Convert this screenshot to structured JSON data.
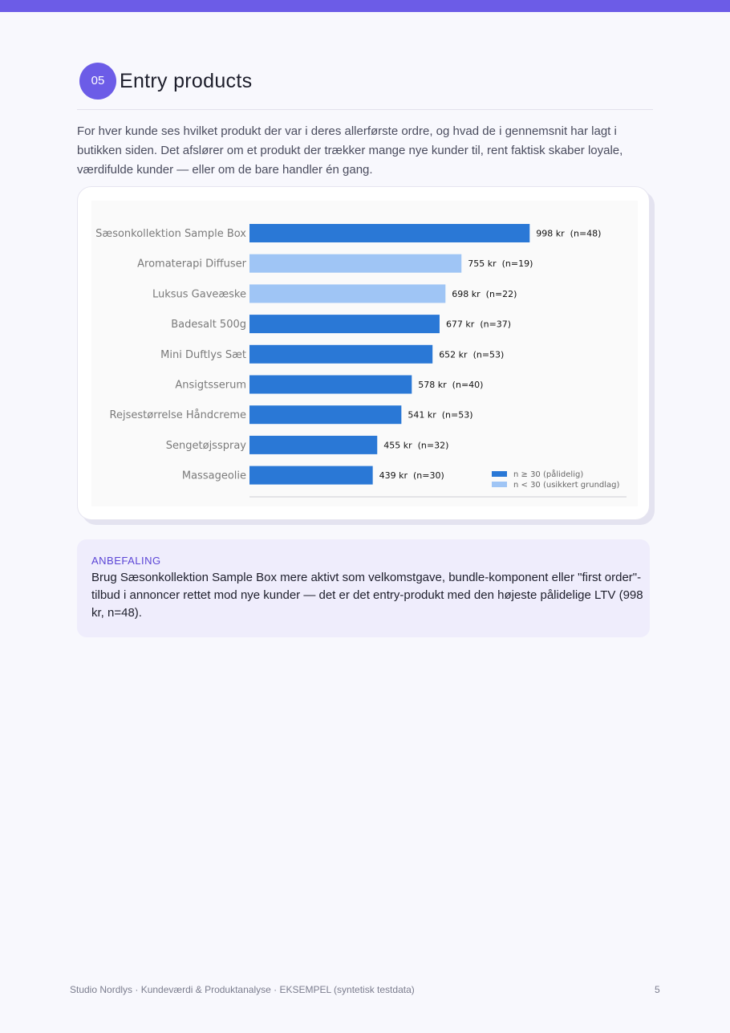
{
  "section": {
    "number": "05",
    "title": "Entry products"
  },
  "intro": "For hver kunde ses hvilket produkt der var i deres allerførste ordre, og hvad de i gennemsnit har lagt i butikken siden. Det afslører om et produkt der trækker mange nye kunder til, rent faktisk skaber loyale, værdifulde kunder — eller om de bare handler én gang.",
  "chart_data": {
    "type": "bar",
    "orientation": "horizontal",
    "categories": [
      "Sæsonkollektion Sample Box",
      "Aromaterapi Diffuser",
      "Luksus Gaveæske",
      "Badesalt 500g",
      "Mini Duftlys Sæt",
      "Ansigtsserum",
      "Rejsestørrelse Håndcreme",
      "Sengetøjsspray",
      "Massageolie"
    ],
    "values": [
      998,
      755,
      698,
      677,
      652,
      578,
      541,
      455,
      439
    ],
    "n": [
      48,
      19,
      22,
      37,
      53,
      40,
      53,
      32,
      30
    ],
    "data_labels": [
      "998 kr  (n=48)",
      "755 kr  (n=19)",
      "698 kr  (n=22)",
      "677 kr  (n=37)",
      "652 kr  (n=53)",
      "578 kr  (n=40)",
      "541 kr  (n=53)",
      "455 kr  (n=32)",
      "439 kr  (n=30)"
    ],
    "xlim": [
      0,
      1000
    ],
    "grid": false,
    "legend_position": "bottom-right",
    "legend": [
      {
        "name": "n ≥ 30 (pålidelig)",
        "color": "#2a78d6"
      },
      {
        "name": "n < 30 (usikkert grundlag)",
        "color": "#9fc5f5"
      }
    ],
    "colors": {
      "reliable": "#2a78d6",
      "unreliable": "#9fc5f5"
    },
    "reliable_threshold": 30
  },
  "recommendation": {
    "label": "ANBEFALING",
    "text": "Brug Sæsonkollektion Sample Box mere aktivt som velkomstgave, bundle-komponent eller \"first order\"-tilbud i annoncer rettet mod nye kunder — det er det entry-produkt med den højeste pålidelige LTV (998 kr, n=48)."
  },
  "footer": {
    "left": "Studio Nordlys · Kundeværdi & Produktanalyse · EKSEMPEL (syntetisk testdata)",
    "page": "5"
  },
  "colors": {
    "accent": "#6c5ce7"
  }
}
